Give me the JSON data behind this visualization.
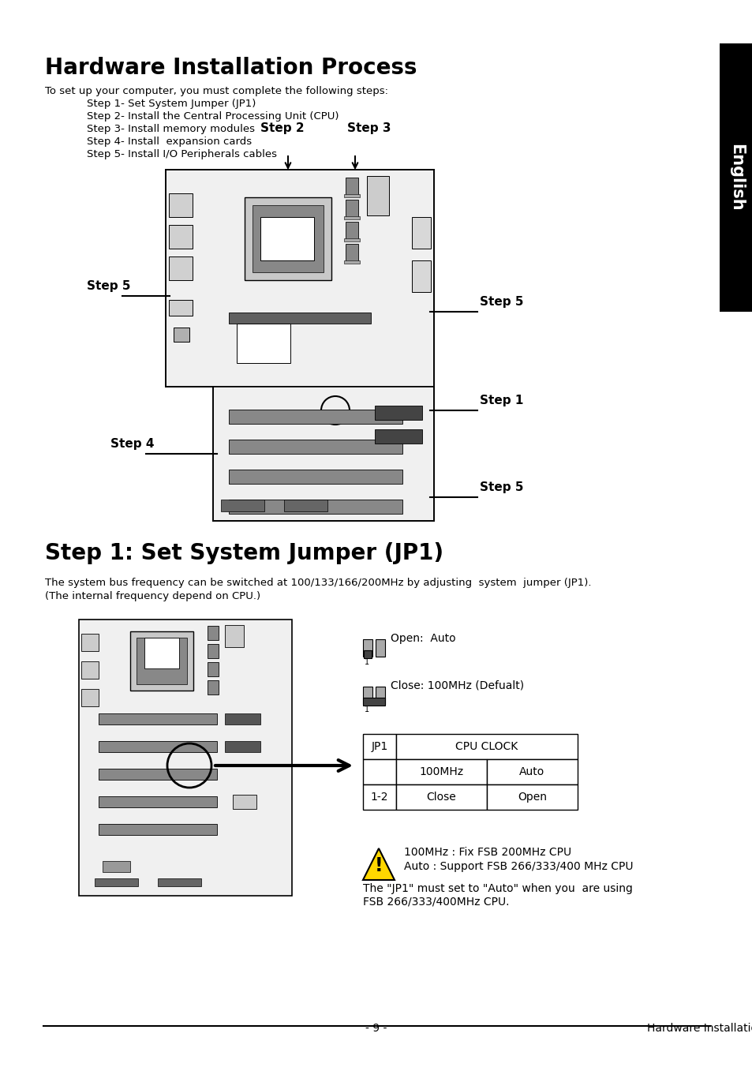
{
  "title": "Hardware Installation Process",
  "step1_heading": "Step 1: Set System Jumper (JP1)",
  "intro_text": "To set up your computer, you must complete the following steps:",
  "steps_list": [
    "Step 1- Set System Jumper (JP1)",
    "Step 2- Install the Central Processing Unit (CPU)",
    "Step 3- Install memory modules",
    "Step 4- Install  expansion cards",
    "Step 5- Install I/O Peripherals cables"
  ],
  "step1_desc1": "The system bus frequency can be switched at 100/133/166/200MHz by adjusting  system  jumper (JP1).",
  "step1_desc2": "(The internal frequency depend on CPU.)",
  "open_label": "Open:  Auto",
  "close_label": "Close: 100MHz (Defualt)",
  "warning1": "100MHz : Fix FSB 200MHz CPU",
  "warning2": "Auto : Support FSB 266/333/400 MHz CPU",
  "note_line1": "The \"JP1\" must set to \"Auto\" when you  are using",
  "note_line2": "FSB 266/333/400MHz CPU.",
  "footer_left": "- 9 -",
  "footer_right": "Hardware Installation Process",
  "bg_color": "#ffffff",
  "text_color": "#000000"
}
